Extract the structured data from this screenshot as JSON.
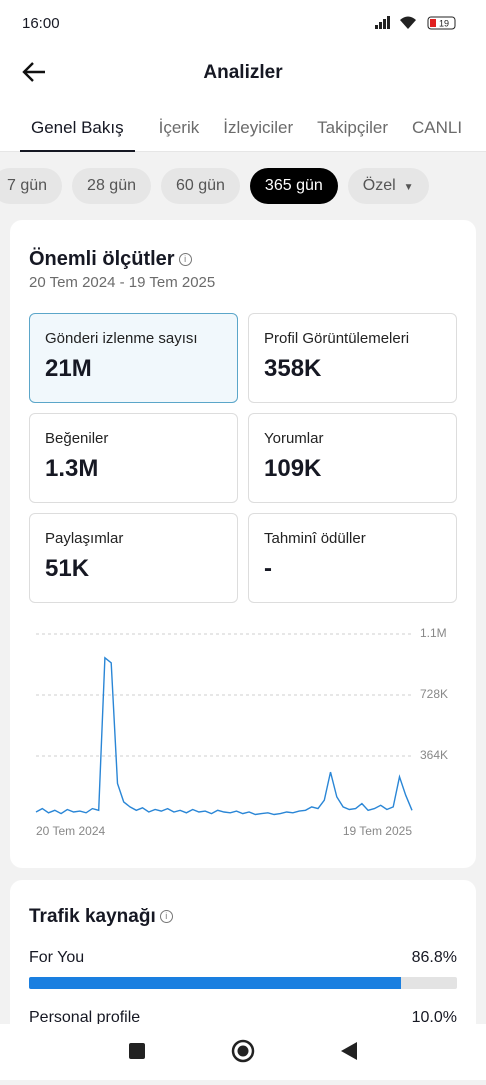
{
  "status": {
    "time": "16:00",
    "battery": "19"
  },
  "header": {
    "title": "Analizler"
  },
  "tabs": {
    "items": [
      "Genel Bakış",
      "İçerik",
      "İzleyiciler",
      "Takipçiler",
      "CANLI"
    ],
    "active": 0
  },
  "chips": {
    "items": [
      "7 gün",
      "28 gün",
      "60 gün",
      "365 gün",
      "Özel"
    ],
    "active": 3
  },
  "metrics_card": {
    "title": "Önemli ölçütler",
    "date_range": "20 Tem 2024 - 19 Tem 2025",
    "metrics": [
      {
        "label": "Gönderi izlenme sayısı",
        "value": "21M"
      },
      {
        "label": "Profil Görüntülemeleri",
        "value": "358K"
      },
      {
        "label": "Beğeniler",
        "value": "1.3M"
      },
      {
        "label": "Yorumlar",
        "value": "109K"
      },
      {
        "label": "Paylaşımlar",
        "value": "51K"
      },
      {
        "label": "Tahminî ödüller",
        "value": "-"
      }
    ],
    "active": 0
  },
  "chart_data": {
    "type": "line",
    "color": "#2a86d6",
    "grid": true,
    "categories": [
      "20 Tem 2024",
      null,
      null,
      null,
      null,
      null,
      null,
      null,
      null,
      null,
      null,
      null,
      null,
      null,
      null,
      null,
      null,
      null,
      null,
      null,
      null,
      null,
      null,
      null,
      null,
      null,
      null,
      null,
      null,
      null,
      null,
      null,
      null,
      null,
      null,
      null,
      null,
      null,
      null,
      null,
      null,
      null,
      null,
      null,
      null,
      null,
      null,
      null,
      null,
      null,
      null,
      null,
      null,
      null,
      null,
      null,
      null,
      null,
      null,
      null,
      "19 Tem 2025"
    ],
    "values": [
      30000,
      50000,
      25000,
      40000,
      20000,
      45000,
      30000,
      35000,
      25000,
      50000,
      40000,
      950000,
      920000,
      200000,
      90000,
      60000,
      40000,
      55000,
      30000,
      45000,
      35000,
      50000,
      30000,
      40000,
      25000,
      45000,
      30000,
      35000,
      20000,
      40000,
      30000,
      25000,
      35000,
      20000,
      30000,
      15000,
      20000,
      25000,
      15000,
      20000,
      30000,
      25000,
      35000,
      40000,
      60000,
      50000,
      100000,
      268000,
      120000,
      60000,
      45000,
      50000,
      80000,
      40000,
      50000,
      70000,
      45000,
      60000,
      240000,
      130000,
      40000
    ],
    "ylim": [
      0,
      1092000
    ],
    "yticks": [
      {
        "value": 364000,
        "label": "364K"
      },
      {
        "value": 728000,
        "label": "728K"
      },
      {
        "value": 1092000,
        "label": "1.1M"
      }
    ]
  },
  "traffic": {
    "title": "Trafik kaynağı",
    "names": [
      "For You",
      "Personal profile"
    ],
    "values": [
      86.8,
      10.0
    ],
    "value_labels": [
      "86.8%",
      "10.0%"
    ],
    "color": "#1a7fe0"
  }
}
